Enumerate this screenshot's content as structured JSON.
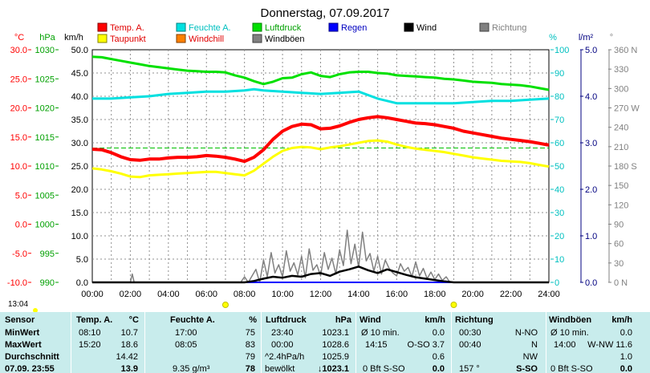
{
  "chart_data": {
    "type": "line",
    "title": "Donnerstag, 07.09.2017",
    "x_ticks": [
      "00:00",
      "02:00",
      "04:00",
      "06:00",
      "08:00",
      "10:00",
      "12:00",
      "14:00",
      "16:00",
      "18:00",
      "20:00",
      "22:00",
      "24:00"
    ],
    "xlim": [
      0,
      24
    ],
    "grid": true,
    "legend": [
      {
        "name": "Temp. A.",
        "color": "#ff0000"
      },
      {
        "name": "Feuchte A.",
        "color": "#00e0e0"
      },
      {
        "name": "Luftdruck",
        "color": "#00e000"
      },
      {
        "name": "Regen",
        "color": "#0000ff"
      },
      {
        "name": "Wind",
        "color": "#000000"
      },
      {
        "name": "Richtung",
        "color": "#808080"
      },
      {
        "name": "Taupunkt",
        "color": "#ffff00"
      },
      {
        "name": "Windchill",
        "color": "#ff8000"
      },
      {
        "name": "Windböen",
        "color": "#808080"
      }
    ],
    "axes": {
      "temp": {
        "label": "°C",
        "color": "#ff0000",
        "ticks": [
          "30.0",
          "25.0",
          "20.0",
          "15.0",
          "10.0",
          "5.0",
          "0.0",
          "-5.0",
          "-10.0"
        ],
        "range": [
          -10,
          30
        ]
      },
      "pressure": {
        "label": "hPa",
        "color": "#00a000",
        "ticks": [
          "1030",
          "1025",
          "1020",
          "1015",
          "1010",
          "1005",
          "1000",
          "995",
          "990"
        ],
        "range": [
          990,
          1030
        ]
      },
      "wind": {
        "label": "km/h",
        "color": "#000000",
        "ticks": [
          "50.0",
          "45.0",
          "40.0",
          "35.0",
          "30.0",
          "25.0",
          "20.0",
          "15.0",
          "10.0",
          "5.0",
          "0.0"
        ],
        "range": [
          0,
          50
        ]
      },
      "humidity": {
        "label": "%",
        "color": "#00c0c0",
        "ticks": [
          "100",
          "90",
          "80",
          "70",
          "60",
          "50",
          "40",
          "30",
          "20",
          "10",
          "0"
        ],
        "range": [
          0,
          100
        ]
      },
      "rain": {
        "label": "l/m²",
        "color": "#000080",
        "ticks": [
          "5.0",
          "4.0",
          "3.0",
          "2.0",
          "1.0",
          "0.0"
        ],
        "range": [
          0,
          5
        ]
      },
      "direction": {
        "label": "°",
        "color": "#808080",
        "ticks": [
          "360 N",
          "330",
          "300",
          "270 W",
          "240",
          "210",
          "180 S",
          "150",
          "120",
          "90",
          "60",
          "30",
          "0 N"
        ],
        "range": [
          0,
          360
        ]
      }
    },
    "series": [
      {
        "name": "Temp. A.",
        "axis": "temp",
        "color": "#ff0000",
        "x": [
          0,
          0.5,
          1,
          1.5,
          2,
          2.5,
          3,
          3.5,
          4,
          4.5,
          5,
          5.5,
          6,
          6.5,
          7,
          7.5,
          8,
          8.5,
          9,
          9.5,
          10,
          10.5,
          11,
          11.5,
          12,
          12.5,
          13,
          13.5,
          14,
          14.5,
          15,
          15.5,
          16,
          16.5,
          17,
          17.5,
          18,
          18.5,
          19,
          19.5,
          20,
          20.5,
          21,
          21.5,
          22,
          22.5,
          23,
          23.5,
          24
        ],
        "y": [
          12.9,
          12.8,
          12.3,
          11.6,
          11.1,
          11.0,
          11.2,
          11.2,
          11.4,
          11.5,
          11.5,
          11.6,
          11.8,
          11.7,
          11.5,
          11.2,
          10.8,
          11.5,
          12.8,
          14.6,
          16.0,
          16.8,
          17.2,
          17.1,
          16.4,
          16.5,
          16.9,
          17.5,
          18.0,
          18.3,
          18.5,
          18.3,
          18.0,
          17.7,
          17.4,
          17.3,
          17.1,
          16.8,
          16.5,
          16.0,
          15.7,
          15.4,
          15.1,
          14.8,
          14.6,
          14.4,
          14.2,
          13.9,
          13.6
        ]
      },
      {
        "name": "Taupunkt",
        "axis": "temp",
        "color": "#ffff00",
        "x": [
          0,
          0.5,
          1,
          1.5,
          2,
          2.5,
          3,
          3.5,
          4,
          4.5,
          5,
          5.5,
          6,
          6.5,
          7,
          7.5,
          8,
          8.5,
          9,
          9.5,
          10,
          10.5,
          11,
          11.5,
          12,
          12.5,
          13,
          13.5,
          14,
          14.5,
          15,
          15.5,
          16,
          16.5,
          17,
          17.5,
          18,
          18.5,
          19,
          19.5,
          20,
          20.5,
          21,
          21.5,
          22,
          22.5,
          23,
          23.5,
          24
        ],
        "y": [
          9.6,
          9.4,
          9.1,
          8.7,
          8.2,
          8.1,
          8.4,
          8.5,
          8.6,
          8.7,
          8.8,
          8.9,
          9.0,
          9.0,
          8.8,
          8.6,
          8.4,
          9.2,
          10.4,
          11.6,
          12.6,
          13.1,
          13.3,
          13.2,
          12.9,
          13.2,
          13.4,
          13.7,
          14.0,
          14.3,
          14.4,
          14.2,
          13.7,
          13.3,
          13.0,
          12.8,
          12.6,
          12.4,
          12.1,
          11.8,
          11.5,
          11.3,
          11.1,
          10.9,
          10.8,
          10.7,
          10.5,
          10.2,
          9.9
        ]
      },
      {
        "name": "Feuchte A.",
        "axis": "humidity",
        "color": "#00e0e0",
        "x": [
          0,
          1,
          2,
          3,
          4,
          5,
          6,
          7,
          8,
          8.5,
          9,
          10,
          11,
          12,
          13,
          14,
          15,
          15.5,
          16,
          17,
          18,
          19,
          20,
          21,
          22,
          23,
          24
        ],
        "y": [
          79,
          79,
          79.5,
          80,
          81,
          81.5,
          82,
          82,
          82.5,
          83,
          82.5,
          82,
          81.5,
          81,
          81.5,
          82,
          79,
          78,
          77,
          77,
          77,
          77,
          77.5,
          78,
          78,
          78.5,
          79
        ]
      },
      {
        "name": "Luftdruck",
        "axis": "pressure",
        "color": "#00e000",
        "x": [
          0,
          0.5,
          1,
          1.5,
          2,
          2.5,
          3,
          3.5,
          4,
          4.5,
          5,
          5.5,
          6,
          6.5,
          7,
          7.5,
          8,
          8.5,
          9,
          9.5,
          10,
          10.5,
          11,
          11.5,
          12,
          12.5,
          13,
          13.5,
          14,
          14.5,
          15,
          15.5,
          16,
          16.5,
          17,
          17.5,
          18,
          18.5,
          19,
          19.5,
          20,
          20.5,
          21,
          21.5,
          22,
          22.5,
          23,
          23.5,
          24
        ],
        "y": [
          1028.8,
          1028.7,
          1028.4,
          1028.1,
          1027.8,
          1027.5,
          1027.2,
          1027.0,
          1026.8,
          1026.6,
          1026.4,
          1026.3,
          1026.2,
          1026.2,
          1026.1,
          1025.6,
          1025.2,
          1024.6,
          1024.1,
          1024.5,
          1025.1,
          1025.2,
          1025.8,
          1026.1,
          1025.5,
          1025.3,
          1025.8,
          1026.1,
          1026.2,
          1026.2,
          1026.0,
          1025.9,
          1025.6,
          1025.5,
          1025.4,
          1025.3,
          1025.2,
          1025.0,
          1024.9,
          1024.7,
          1024.5,
          1024.4,
          1024.3,
          1024.1,
          1024.0,
          1023.9,
          1023.7,
          1023.4,
          1023.1
        ]
      },
      {
        "name": "Wind",
        "axis": "wind",
        "color": "#000000",
        "x": [
          0,
          8,
          8.5,
          9,
          9.5,
          10,
          10.5,
          11,
          11.5,
          12,
          12.5,
          13,
          13.5,
          14,
          14.5,
          15,
          15.5,
          16,
          16.5,
          17,
          17.5,
          18,
          18.5,
          19,
          24
        ],
        "y": [
          0,
          0,
          0.3,
          0.8,
          1.2,
          1.0,
          1.4,
          1.2,
          1.8,
          2.0,
          1.4,
          2.3,
          2.8,
          3.4,
          2.6,
          2.0,
          2.8,
          2.2,
          1.6,
          1.1,
          0.8,
          0.5,
          0.2,
          0,
          0
        ]
      },
      {
        "name": "Windböen",
        "axis": "wind",
        "color": "#808080",
        "x": [
          0,
          2.0,
          2.1,
          2.2,
          7.8,
          8.0,
          8.2,
          8.6,
          8.8,
          9.0,
          9.2,
          9.4,
          9.6,
          9.8,
          10.0,
          10.2,
          10.4,
          10.6,
          10.8,
          11.0,
          11.2,
          11.4,
          11.6,
          11.8,
          12.0,
          12.2,
          12.4,
          12.6,
          12.8,
          13.0,
          13.2,
          13.4,
          13.6,
          13.8,
          14.0,
          14.2,
          14.4,
          14.6,
          14.8,
          15.0,
          15.2,
          15.4,
          15.6,
          15.8,
          16.0,
          16.2,
          16.4,
          16.6,
          16.8,
          17.0,
          17.2,
          17.4,
          17.6,
          17.8,
          18.0,
          18.2,
          18.4,
          18.6,
          18.8,
          24
        ],
        "y": [
          0,
          0,
          1.8,
          0,
          0,
          1.2,
          0,
          2.8,
          0,
          4.8,
          1.2,
          6.4,
          2.0,
          3.8,
          1.2,
          6.8,
          2.4,
          4.2,
          1.6,
          5.6,
          1.0,
          7.2,
          2.6,
          3.8,
          1.4,
          6.4,
          2.8,
          5.2,
          1.8,
          7.0,
          3.6,
          11.2,
          4.0,
          8.2,
          3.2,
          10.8,
          4.6,
          6.2,
          2.4,
          5.6,
          1.8,
          4.8,
          3.0,
          2.0,
          1.4,
          4.0,
          2.4,
          3.2,
          1.2,
          4.4,
          1.4,
          3.0,
          0.8,
          2.2,
          0.6,
          1.8,
          0.4,
          1.2,
          0,
          0
        ]
      },
      {
        "name": "Regen",
        "axis": "rain",
        "color": "#0000ff",
        "x": [
          0,
          24
        ],
        "y": [
          0,
          0
        ]
      }
    ],
    "reference_line": {
      "axis": "temp",
      "value": 13.1,
      "color": "#00c000",
      "style": "dashed"
    },
    "bottom_bar": {
      "label": "13:04",
      "sun_markers": [
        "07:00",
        "19:00"
      ]
    }
  },
  "table": {
    "headers": {
      "sensor": "Sensor",
      "temp": "Temp. A.",
      "temp_unit": "°C",
      "hum": "Feuchte A.",
      "hum_unit": "%",
      "press": "Luftdruck",
      "press_unit": "hPa",
      "wind": "Wind",
      "wind_unit": "km/h",
      "dir": "Richtung",
      "gust": "Windböen",
      "gust_unit": "km/h"
    },
    "rows": {
      "min": {
        "label": "MinWert",
        "temp_time": "08:10",
        "temp_val": "10.7",
        "hum_time": "17:00",
        "hum_val": "75",
        "press_time": "23:40",
        "press_val": "1023.1",
        "wind_time": "Ø 10 min.",
        "wind_val": "0.0",
        "dir_time": "00:30",
        "dir_val": "N-NO",
        "gust_time": "Ø 10 min.",
        "gust_val": "0.0"
      },
      "max": {
        "label": "MaxWert",
        "temp_time": "15:20",
        "temp_val": "18.6",
        "hum_time": "08:05",
        "hum_val": "83",
        "press_time": "00:00",
        "press_val": "1028.6",
        "wind_time": "14:15",
        "wind_val": "O-SO 3.7",
        "dir_time": "00:40",
        "dir_val": "N",
        "gust_time": "14:00",
        "gust_val": "W-NW 11.6"
      },
      "avg": {
        "label": "Durchschnitt",
        "temp_val": "14.42",
        "hum_val": "79",
        "press_time": "^2.4hPa/h",
        "press_val": "1025.9",
        "wind_val": "0.6",
        "dir_val": "NW",
        "gust_val": "1.0"
      },
      "cur": {
        "label": "07.09. 23:55",
        "temp_val": "13.9",
        "hum_time": "9.35 g/m³",
        "hum_val": "78",
        "press_time": "bewölkt",
        "press_val": "↓1023.1",
        "wind_time": "0 Bft S-SO",
        "wind_val": "0.0",
        "dir_time": "157 °",
        "dir_val": "S-SO",
        "gust_time": "0 Bft S-SO",
        "gust_val": "0.0"
      }
    }
  }
}
